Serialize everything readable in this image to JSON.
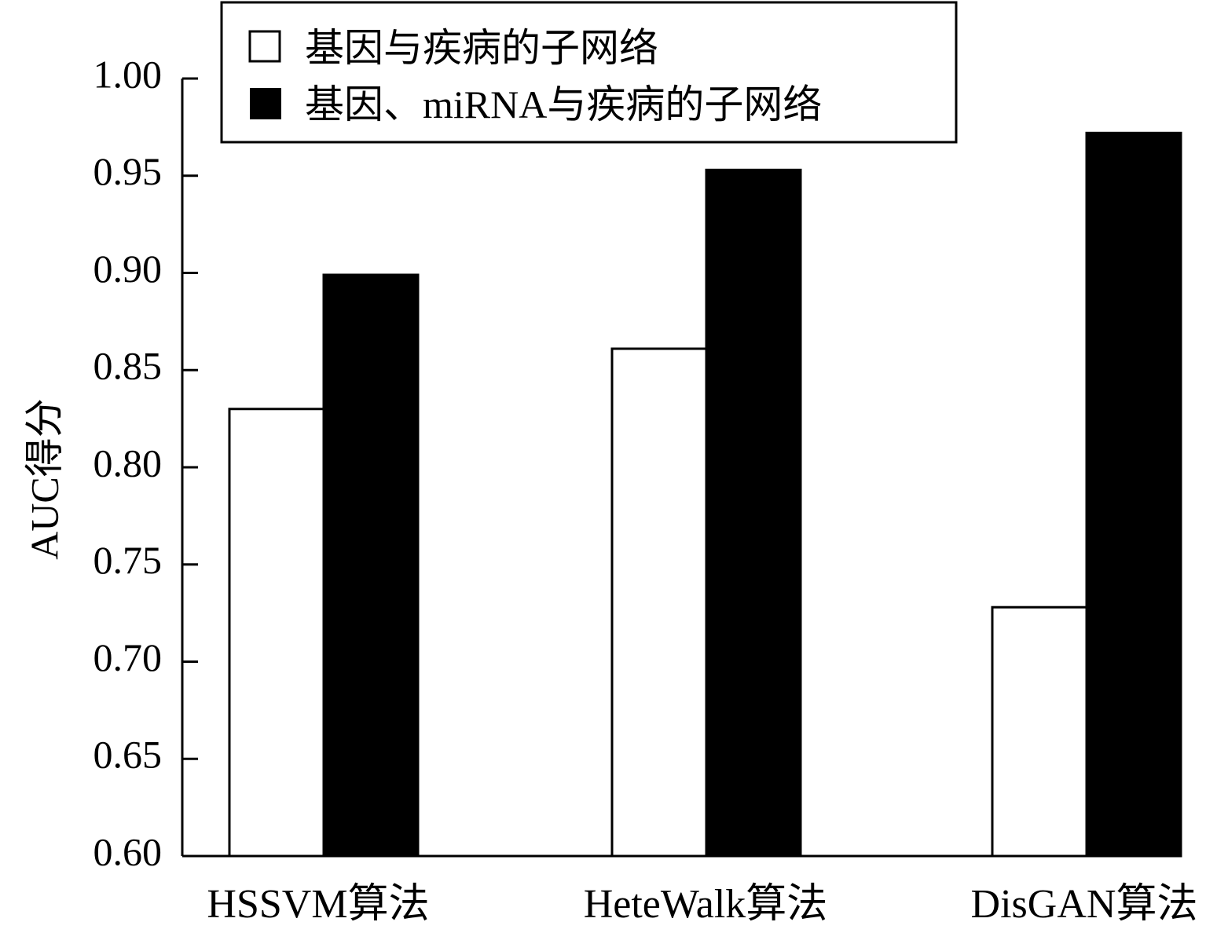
{
  "chart_data": {
    "type": "bar",
    "title": "",
    "xlabel": "",
    "ylabel": "AUC得分",
    "ylim": [
      0.6,
      1.0
    ],
    "yticks": [
      "0.60",
      "0.65",
      "0.70",
      "0.75",
      "0.80",
      "0.85",
      "0.90",
      "0.95",
      "1.00"
    ],
    "categories": [
      "HSSVM算法",
      "HeteWalk算法",
      "DisGAN算法"
    ],
    "series": [
      {
        "name": "基因与疾病的子网络",
        "color": "#ffffff",
        "values": [
          0.83,
          0.861,
          0.728
        ]
      },
      {
        "name": "基因、miRNA与疾病的子网络",
        "color": "#000000",
        "values": [
          0.899,
          0.953,
          0.972
        ]
      }
    ],
    "grid": false,
    "legend_position": "top"
  }
}
